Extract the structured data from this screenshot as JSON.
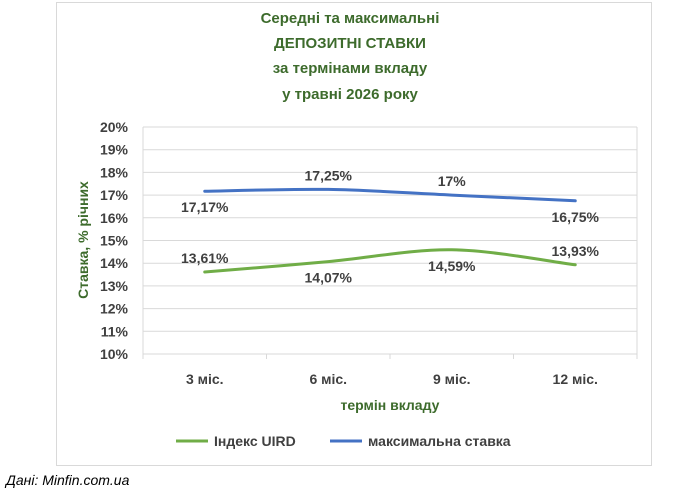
{
  "chart_data": {
    "type": "line",
    "title_lines": [
      "Середні та максимальні",
      "ДЕПОЗИТНІ СТАВКИ",
      "за термінами вкладу",
      "у травні 2026 року"
    ],
    "xlabel": "термін вкладу",
    "ylabel": "Ставка, % річних",
    "categories": [
      "3 міс.",
      "6 міс.",
      "9 міс.",
      "12 міс."
    ],
    "ylim": [
      10,
      20
    ],
    "yticks": [
      10,
      11,
      12,
      13,
      14,
      15,
      16,
      17,
      18,
      19,
      20
    ],
    "ytick_labels": [
      "10%",
      "11%",
      "12%",
      "13%",
      "14%",
      "15%",
      "16%",
      "17%",
      "18%",
      "19%",
      "20%"
    ],
    "grid": true,
    "legend_position": "bottom",
    "series": [
      {
        "name": "Індекс UIRD",
        "color": "#70ad47",
        "values": [
          13.61,
          14.07,
          14.59,
          13.93
        ],
        "labels": [
          "13,61%",
          "14,07%",
          "14,59%",
          "13,93%"
        ],
        "label_placement": [
          "above",
          "below",
          "below",
          "above"
        ]
      },
      {
        "name": "максимальна ставка",
        "color": "#4472c4",
        "values": [
          17.17,
          17.25,
          17.0,
          16.75
        ],
        "labels": [
          "17,17%",
          "17,25%",
          "17%",
          "16,75%"
        ],
        "label_placement": [
          "below",
          "above",
          "above",
          "below"
        ]
      }
    ]
  },
  "source_note": "Дані: Minfin.com.ua"
}
